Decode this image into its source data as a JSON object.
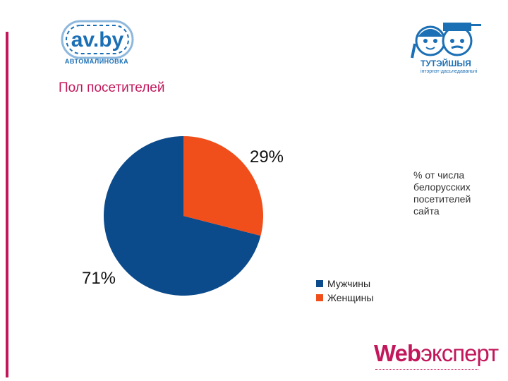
{
  "logos": {
    "left_text": "av.by",
    "left_subtitle": "АВТОМАЛИНОВКА",
    "right_text": "ТУТЭЙШЫЯ",
    "right_tagline": "інтэрнэт-дасьледаваньні",
    "bottom_web": "Web",
    "bottom_rest": "эксперт"
  },
  "page": {
    "title": "Пол посетителей",
    "note": "% от числа белорусских посетителей сайта"
  },
  "colors": {
    "male": "#0b4a8b",
    "female": "#f04e1a",
    "accent": "#c2185b",
    "logo_blue": "#1b6fb5"
  },
  "chart_data": {
    "type": "pie",
    "title": "",
    "categories": [
      "Мужчины",
      "Женщины"
    ],
    "values": [
      71,
      29
    ],
    "data_labels": [
      "71%",
      "29%"
    ],
    "legend_position": "bottom-right"
  }
}
